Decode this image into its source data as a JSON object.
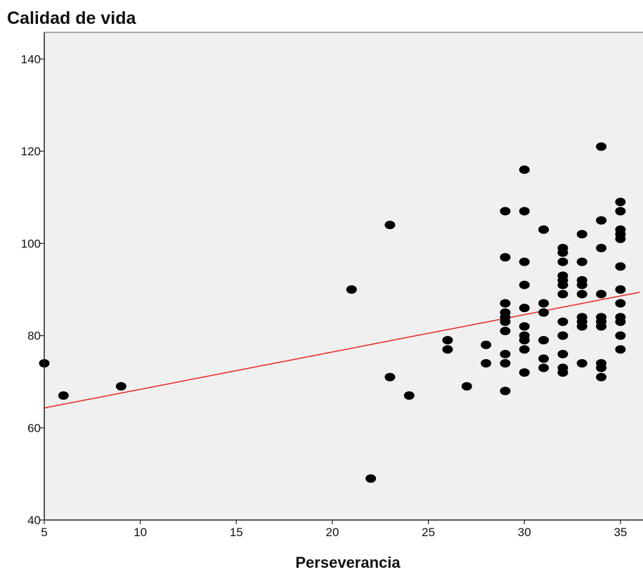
{
  "chart_data": {
    "type": "scatter",
    "title": "Calidad de vida",
    "xlabel": "Perseverancia",
    "ylabel": "Calidad de vida",
    "xlim": [
      5,
      36
    ],
    "ylim": [
      40,
      145
    ],
    "xticks": [
      5,
      10,
      15,
      20,
      25,
      30,
      35
    ],
    "yticks": [
      40,
      60,
      80,
      100,
      120,
      140
    ],
    "grid": false,
    "legend": "none",
    "colors": {
      "background": "#f0f0f0",
      "points": "#000000",
      "fit_line": "#e83030"
    },
    "fit_line": {
      "x": [
        5,
        36
      ],
      "y": [
        64.3,
        89.4
      ]
    },
    "points": [
      {
        "x": 5,
        "y": 74
      },
      {
        "x": 6,
        "y": 67
      },
      {
        "x": 9,
        "y": 69
      },
      {
        "x": 21,
        "y": 90
      },
      {
        "x": 22,
        "y": 49
      },
      {
        "x": 23,
        "y": 104
      },
      {
        "x": 23,
        "y": 71
      },
      {
        "x": 24,
        "y": 67
      },
      {
        "x": 26,
        "y": 79
      },
      {
        "x": 26,
        "y": 77
      },
      {
        "x": 27,
        "y": 69
      },
      {
        "x": 28,
        "y": 78
      },
      {
        "x": 28,
        "y": 74
      },
      {
        "x": 29,
        "y": 107
      },
      {
        "x": 29,
        "y": 97
      },
      {
        "x": 29,
        "y": 87
      },
      {
        "x": 29,
        "y": 85
      },
      {
        "x": 29,
        "y": 84
      },
      {
        "x": 29,
        "y": 83
      },
      {
        "x": 29,
        "y": 81
      },
      {
        "x": 29,
        "y": 76
      },
      {
        "x": 29,
        "y": 74
      },
      {
        "x": 29,
        "y": 68
      },
      {
        "x": 30,
        "y": 116
      },
      {
        "x": 30,
        "y": 107
      },
      {
        "x": 30,
        "y": 96
      },
      {
        "x": 30,
        "y": 91
      },
      {
        "x": 30,
        "y": 86
      },
      {
        "x": 30,
        "y": 82
      },
      {
        "x": 30,
        "y": 80
      },
      {
        "x": 30,
        "y": 79
      },
      {
        "x": 30,
        "y": 77
      },
      {
        "x": 30,
        "y": 72
      },
      {
        "x": 31,
        "y": 103
      },
      {
        "x": 31,
        "y": 87
      },
      {
        "x": 31,
        "y": 85
      },
      {
        "x": 31,
        "y": 79
      },
      {
        "x": 31,
        "y": 75
      },
      {
        "x": 31,
        "y": 73
      },
      {
        "x": 32,
        "y": 99
      },
      {
        "x": 32,
        "y": 98
      },
      {
        "x": 32,
        "y": 96
      },
      {
        "x": 32,
        "y": 93
      },
      {
        "x": 32,
        "y": 92
      },
      {
        "x": 32,
        "y": 91
      },
      {
        "x": 32,
        "y": 89
      },
      {
        "x": 32,
        "y": 83
      },
      {
        "x": 32,
        "y": 80
      },
      {
        "x": 32,
        "y": 76
      },
      {
        "x": 32,
        "y": 73
      },
      {
        "x": 32,
        "y": 72
      },
      {
        "x": 33,
        "y": 102
      },
      {
        "x": 33,
        "y": 96
      },
      {
        "x": 33,
        "y": 92
      },
      {
        "x": 33,
        "y": 91
      },
      {
        "x": 33,
        "y": 89
      },
      {
        "x": 33,
        "y": 84
      },
      {
        "x": 33,
        "y": 83
      },
      {
        "x": 33,
        "y": 82
      },
      {
        "x": 33,
        "y": 74
      },
      {
        "x": 34,
        "y": 121
      },
      {
        "x": 34,
        "y": 105
      },
      {
        "x": 34,
        "y": 99
      },
      {
        "x": 34,
        "y": 89
      },
      {
        "x": 34,
        "y": 84
      },
      {
        "x": 34,
        "y": 83
      },
      {
        "x": 34,
        "y": 82
      },
      {
        "x": 34,
        "y": 74
      },
      {
        "x": 34,
        "y": 73
      },
      {
        "x": 34,
        "y": 71
      },
      {
        "x": 35,
        "y": 109
      },
      {
        "x": 35,
        "y": 107
      },
      {
        "x": 35,
        "y": 103
      },
      {
        "x": 35,
        "y": 102
      },
      {
        "x": 35,
        "y": 101
      },
      {
        "x": 35,
        "y": 95
      },
      {
        "x": 35,
        "y": 90
      },
      {
        "x": 35,
        "y": 87
      },
      {
        "x": 35,
        "y": 84
      },
      {
        "x": 35,
        "y": 83
      },
      {
        "x": 35,
        "y": 80
      },
      {
        "x": 35,
        "y": 77
      }
    ]
  }
}
